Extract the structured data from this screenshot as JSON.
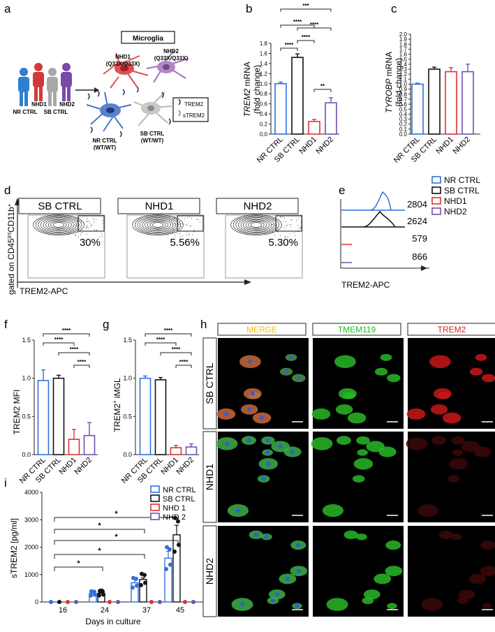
{
  "panel_letters": [
    "a",
    "b",
    "c",
    "d",
    "e",
    "f",
    "g",
    "h",
    "i"
  ],
  "colors": {
    "nr": "#2f6fe0",
    "sb": "#111111",
    "nhd1": "#e03030",
    "nhd2": "#7050b0",
    "merge": "#f0c020",
    "tmem": "#20c020",
    "trem": "#e02020"
  },
  "panel_a": {
    "title": "Microglia",
    "people": [
      "NR CTRL",
      "NHD1",
      "SB CTRL",
      "NHD2"
    ],
    "cells": [
      {
        "label": "NHD1",
        "genotype": "(Q33X/Q33X)"
      },
      {
        "label": "NHD2",
        "genotype": "(Q33X/Q33X)"
      },
      {
        "label": "NR CTRL",
        "genotype": "(WT/WT)"
      },
      {
        "label": "SB CTRL",
        "genotype": "(WT/WT)"
      }
    ],
    "legend": [
      "TREM2",
      "sTREM2"
    ]
  },
  "chart_data": [
    {
      "id": "b",
      "type": "bar",
      "ylabel_italic": "TREM2",
      "ylabel_rest": " mRNA",
      "ylabel2": "(fold change)",
      "categories": [
        "NR CTRL",
        "SB CTRL",
        "NHD1",
        "NHD2"
      ],
      "values": [
        1.0,
        1.52,
        0.25,
        0.62
      ],
      "errors": [
        0.03,
        0.07,
        0.04,
        0.1
      ],
      "ylim": [
        0,
        1.8
      ],
      "yticks": [
        "0.0",
        "0.2",
        "0.4",
        "0.6",
        "0.8",
        "1.0",
        "1.2",
        "1.4",
        "1.6",
        "1.8"
      ],
      "sig": [
        {
          "from": 0,
          "to": 1,
          "text": "****"
        },
        {
          "from": 2,
          "to": 3,
          "text": "**"
        },
        {
          "from": 1,
          "to": 2,
          "text": "****"
        },
        {
          "from": 0,
          "to": 2,
          "text": "****"
        },
        {
          "from": 1,
          "to": 3,
          "text": "****"
        },
        {
          "from": 0,
          "to": 3,
          "text": "***"
        }
      ]
    },
    {
      "id": "c",
      "type": "bar",
      "ylabel_italic": "TYROBP",
      "ylabel_rest": " mRNA",
      "ylabel2": "(fold change)",
      "categories": [
        "NR CTRL",
        "SB CTRL",
        "NHD1",
        "NHD2"
      ],
      "values": [
        1.0,
        1.3,
        1.25,
        1.25
      ],
      "errors": [
        0.02,
        0.04,
        0.08,
        0.15
      ],
      "ylim": [
        0,
        2.0
      ],
      "yticks": [
        "0.0",
        "0.1",
        "0.2",
        "0.3",
        "0.4",
        "0.5",
        "0.6",
        "0.7",
        "0.8",
        "0.9",
        "1.0",
        "1.1",
        "1.2",
        "1.3",
        "1.4",
        "1.5",
        "1.6",
        "1.7",
        "1.8",
        "1.9",
        "2.0"
      ],
      "sig": []
    },
    {
      "id": "f",
      "type": "bar",
      "ylabel": "TREM2 MFI",
      "categories": [
        "NR CTRL",
        "SB CTRL",
        "NHD1",
        "NHD2"
      ],
      "values": [
        0.97,
        1.0,
        0.2,
        0.25
      ],
      "errors": [
        0.14,
        0.04,
        0.13,
        0.17
      ],
      "ylim": [
        0,
        1.5
      ],
      "yticks": [
        "0.0",
        "0.5",
        "1.0",
        "1.5"
      ],
      "sig": [
        {
          "from": 2,
          "to": 3,
          "text": "****"
        },
        {
          "from": 1,
          "to": 3,
          "text": "****"
        },
        {
          "from": 0,
          "to": 2,
          "text": "****"
        },
        {
          "from": 0,
          "to": 3,
          "text": "****"
        }
      ]
    },
    {
      "id": "g",
      "type": "bar",
      "ylabel": "TREM2",
      "ylabel_sup": "+",
      "ylabel_rest": " iMGL",
      "categories": [
        "NR CTRL",
        "SB CTRL",
        "NHD1",
        "NHD2"
      ],
      "values": [
        1.0,
        0.98,
        0.09,
        0.1
      ],
      "errors": [
        0.03,
        0.03,
        0.03,
        0.04
      ],
      "ylim": [
        0,
        1.5
      ],
      "yticks": [
        "0.0",
        "0.5",
        "1.0",
        "1.5"
      ],
      "sig": [
        {
          "from": 2,
          "to": 3,
          "text": "****"
        },
        {
          "from": 1,
          "to": 3,
          "text": "****"
        },
        {
          "from": 0,
          "to": 2,
          "text": "****"
        },
        {
          "from": 0,
          "to": 3,
          "text": "****"
        }
      ]
    },
    {
      "id": "i",
      "type": "bar",
      "ylabel": "sTREM2  [pg/ml]",
      "xlabel": "Days in culture",
      "categories": [
        "16",
        "24",
        "37",
        "45"
      ],
      "series": [
        {
          "name": "NR CTRL",
          "values": [
            0,
            310,
            700,
            1600
          ],
          "errors": [
            0,
            120,
            150,
            250
          ]
        },
        {
          "name": "SB CTRL",
          "values": [
            0,
            320,
            820,
            2450
          ],
          "errors": [
            0,
            150,
            60,
            350
          ]
        },
        {
          "name": "NHD 1",
          "values": [
            0,
            0,
            0,
            0
          ],
          "errors": [
            0,
            0,
            0,
            0
          ]
        },
        {
          "name": "NHD 2",
          "values": [
            0,
            0,
            0,
            0
          ],
          "errors": [
            0,
            0,
            0,
            0
          ]
        }
      ],
      "ylim": [
        0,
        4000
      ],
      "yticks": [
        "0",
        "1000",
        "2000",
        "3000",
        "4000"
      ],
      "sig": [
        {
          "day": 0,
          "to": 1,
          "text": "*"
        },
        {
          "day": 0,
          "to": 2,
          "text": "*"
        },
        {
          "day": 0,
          "to": 3,
          "text": "*"
        },
        {
          "day": 0,
          "to": 2,
          "text": "*",
          "level": 3
        },
        {
          "day": 0,
          "to": 3,
          "text": "*",
          "level": 4
        }
      ]
    }
  ],
  "panel_d": {
    "plots": [
      {
        "title": "SB CTRL",
        "pct": "30%"
      },
      {
        "title": "NHD1",
        "pct": "5.56%"
      },
      {
        "title": "NHD2",
        "pct": "5.30%"
      }
    ],
    "ylabel_pre": "gated on CD45",
    "ylabel_sup1": "int",
    "ylabel_mid": "CD11b",
    "ylabel_sup2": "+",
    "xlabel": "TREM2-APC"
  },
  "panel_e": {
    "legend": [
      "NR CTRL",
      "SB CTRL",
      "NHD1",
      "NHD2"
    ],
    "mfi": [
      "2804",
      "2624",
      "579",
      "866"
    ],
    "xlabel": "TREM2-APC"
  },
  "panel_h": {
    "columns": [
      "MERGE",
      "TMEM119",
      "TREM2"
    ],
    "rows": [
      "SB CTRL",
      "NHD1",
      "NHD2"
    ]
  }
}
